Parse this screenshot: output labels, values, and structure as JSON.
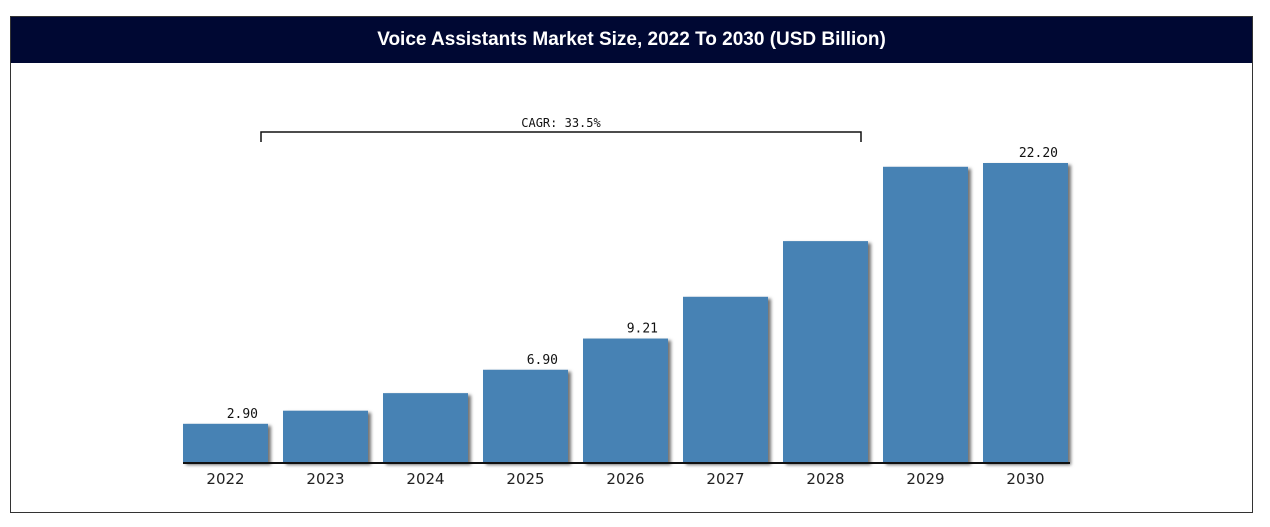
{
  "colors": {
    "title_bg": "#000833",
    "bar": "#4682b4"
  },
  "chart_data": {
    "type": "bar",
    "title": "Voice Assistants Market Size, 2022 To 2030 (USD Billion)",
    "categories": [
      "2022",
      "2023",
      "2024",
      "2025",
      "2026",
      "2027",
      "2028",
      "2029",
      "2030"
    ],
    "values": [
      2.9,
      3.87,
      5.17,
      6.9,
      9.21,
      12.3,
      16.42,
      21.92,
      22.2
    ],
    "data_labels": [
      "2.90",
      "",
      "",
      "6.90",
      "9.21",
      "",
      "",
      "",
      "22.20"
    ],
    "annotation": {
      "text": "CAGR: 33.5%",
      "from": "2023",
      "to": "2029"
    },
    "ylim": [
      0,
      22.2
    ],
    "grid": false,
    "legend": "none"
  }
}
